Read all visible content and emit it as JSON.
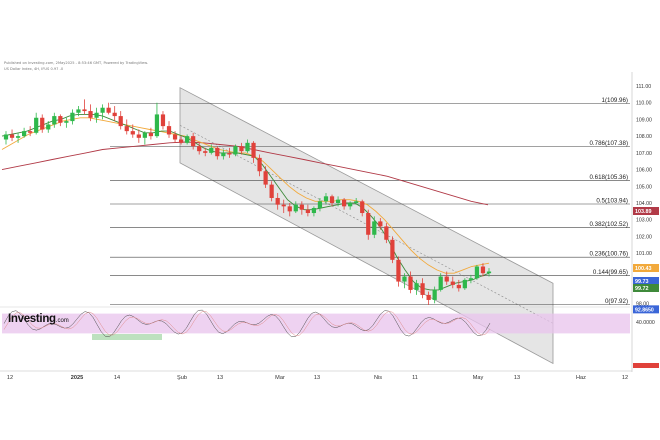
{
  "header": {
    "line1": "Published on Investing.com, 2May2025 - 8:53:46 GMT, Powered by TradingView.",
    "line2": "US Dollar Index, 4H, IFUS 0.97 -0"
  },
  "brand": {
    "name": "Investing",
    "suffix": ".com"
  },
  "colors": {
    "background": "#ffffff",
    "up": "#2eb84b",
    "down": "#e0413a",
    "ma_fast": "#3f8a3b",
    "ma_mid": "#f2a93b",
    "ma_slow": "#b13a47",
    "channel_fill": "#cfcfcf",
    "fib_line": "#444444",
    "osc_band": "#e8c3ec"
  },
  "chart_data": {
    "type": "candlestick",
    "title": "",
    "instrument": "US Dollar Index",
    "timeframe": "4H",
    "y_ticks": [
      111.0,
      110.0,
      109.0,
      108.0,
      107.0,
      106.0,
      105.0,
      104.0,
      103.0,
      102.0,
      101.0,
      100.0,
      99.0,
      98.0
    ],
    "ylim": [
      97.0,
      112.0
    ],
    "x_ticks": [
      "12",
      "2025",
      "14",
      "Şub",
      "13",
      "Mar",
      "13",
      "Nis",
      "11",
      "May",
      "13",
      "Haz",
      "12"
    ],
    "fibonacci": [
      {
        "ratio": "1",
        "value": 109.96,
        "label": "1(109.96)"
      },
      {
        "ratio": "0.786",
        "value": 107.38,
        "label": "0.786(107.38)"
      },
      {
        "ratio": "0.618",
        "value": 105.36,
        "label": "0.618(105.36)"
      },
      {
        "ratio": "0.5",
        "value": 103.94,
        "label": "0.5(103.94)"
      },
      {
        "ratio": "0.382",
        "value": 102.52,
        "label": "0.382(102.52)"
      },
      {
        "ratio": "0.236",
        "value": 100.76,
        "label": "0.236(100.76)"
      },
      {
        "ratio": "0.144",
        "value": 99.65,
        "label": "0.144(99.65)"
      },
      {
        "ratio": "0",
        "value": 97.92,
        "label": "0(97.92)"
      }
    ],
    "price_badges": [
      {
        "value": "103.89",
        "color": "#b13a47"
      },
      {
        "value": "100.43",
        "color": "#f2a93b"
      },
      {
        "value": "99.73",
        "color": "#3a66d8"
      },
      {
        "value": "99.72",
        "color": "#3f8a3b"
      }
    ],
    "oscillator": {
      "name": "Stochastic",
      "value_label": "92.8650",
      "ticks": [
        "40.0000"
      ],
      "band": [
        20,
        80
      ],
      "current": 92.87
    },
    "channel": {
      "upper": [
        {
          "x": "2025-02-03",
          "y": 110.9
        },
        {
          "x": "2025-05-30",
          "y": 99.2
        }
      ],
      "lower": [
        {
          "x": "2025-02-03",
          "y": 106.4
        },
        {
          "x": "2025-05-30",
          "y": 94.4
        }
      ]
    },
    "candles": [
      {
        "o": 107.8,
        "h": 108.3,
        "l": 107.5,
        "c": 108.1
      },
      {
        "o": 108.1,
        "h": 108.4,
        "l": 107.7,
        "c": 107.9
      },
      {
        "o": 107.9,
        "h": 108.2,
        "l": 107.6,
        "c": 108.0
      },
      {
        "o": 108.0,
        "h": 108.5,
        "l": 107.9,
        "c": 108.3
      },
      {
        "o": 108.3,
        "h": 108.6,
        "l": 108.0,
        "c": 108.2
      },
      {
        "o": 108.2,
        "h": 109.4,
        "l": 108.1,
        "c": 109.1
      },
      {
        "o": 109.1,
        "h": 109.3,
        "l": 108.2,
        "c": 108.4
      },
      {
        "o": 108.4,
        "h": 108.9,
        "l": 108.2,
        "c": 108.7
      },
      {
        "o": 108.7,
        "h": 109.4,
        "l": 108.5,
        "c": 109.2
      },
      {
        "o": 109.2,
        "h": 109.3,
        "l": 108.6,
        "c": 108.8
      },
      {
        "o": 108.8,
        "h": 109.1,
        "l": 108.5,
        "c": 108.9
      },
      {
        "o": 108.9,
        "h": 109.6,
        "l": 108.7,
        "c": 109.4
      },
      {
        "o": 109.4,
        "h": 109.8,
        "l": 109.2,
        "c": 109.6
      },
      {
        "o": 109.6,
        "h": 110.2,
        "l": 109.3,
        "c": 109.5
      },
      {
        "o": 109.5,
        "h": 109.9,
        "l": 108.9,
        "c": 109.1
      },
      {
        "o": 109.1,
        "h": 109.7,
        "l": 108.8,
        "c": 109.4
      },
      {
        "o": 109.4,
        "h": 109.9,
        "l": 109.0,
        "c": 109.7
      },
      {
        "o": 109.7,
        "h": 110.0,
        "l": 109.3,
        "c": 109.4
      },
      {
        "o": 109.4,
        "h": 109.8,
        "l": 108.9,
        "c": 109.2
      },
      {
        "o": 109.2,
        "h": 109.5,
        "l": 108.4,
        "c": 108.6
      },
      {
        "o": 108.6,
        "h": 109.0,
        "l": 108.1,
        "c": 108.3
      },
      {
        "o": 108.3,
        "h": 108.7,
        "l": 107.9,
        "c": 108.1
      },
      {
        "o": 108.1,
        "h": 108.4,
        "l": 107.6,
        "c": 107.9
      },
      {
        "o": 107.9,
        "h": 108.3,
        "l": 107.5,
        "c": 108.2
      },
      {
        "o": 108.2,
        "h": 108.5,
        "l": 107.8,
        "c": 108.0
      },
      {
        "o": 108.0,
        "h": 110.0,
        "l": 107.9,
        "c": 109.3
      },
      {
        "o": 109.3,
        "h": 109.5,
        "l": 108.4,
        "c": 108.6
      },
      {
        "o": 108.6,
        "h": 108.9,
        "l": 107.9,
        "c": 108.1
      },
      {
        "o": 108.1,
        "h": 108.3,
        "l": 107.6,
        "c": 107.8
      },
      {
        "o": 107.8,
        "h": 108.0,
        "l": 107.5,
        "c": 107.6
      },
      {
        "o": 107.6,
        "h": 108.1,
        "l": 107.5,
        "c": 108.0
      },
      {
        "o": 108.0,
        "h": 108.2,
        "l": 107.2,
        "c": 107.4
      },
      {
        "o": 107.4,
        "h": 107.6,
        "l": 106.9,
        "c": 107.1
      },
      {
        "o": 107.1,
        "h": 107.3,
        "l": 106.8,
        "c": 107.0
      },
      {
        "o": 107.0,
        "h": 107.5,
        "l": 106.9,
        "c": 107.3
      },
      {
        "o": 107.3,
        "h": 107.4,
        "l": 106.6,
        "c": 106.8
      },
      {
        "o": 106.8,
        "h": 107.2,
        "l": 106.6,
        "c": 107.0
      },
      {
        "o": 107.0,
        "h": 107.3,
        "l": 106.7,
        "c": 106.9
      },
      {
        "o": 106.9,
        "h": 107.5,
        "l": 106.8,
        "c": 107.4
      },
      {
        "o": 107.4,
        "h": 107.6,
        "l": 106.9,
        "c": 107.1
      },
      {
        "o": 107.1,
        "h": 107.8,
        "l": 107.0,
        "c": 107.6
      },
      {
        "o": 107.6,
        "h": 107.7,
        "l": 106.4,
        "c": 106.7
      },
      {
        "o": 106.7,
        "h": 106.9,
        "l": 105.6,
        "c": 105.9
      },
      {
        "o": 105.9,
        "h": 106.2,
        "l": 104.9,
        "c": 105.1
      },
      {
        "o": 105.1,
        "h": 105.3,
        "l": 104.1,
        "c": 104.3
      },
      {
        "o": 104.3,
        "h": 104.6,
        "l": 103.6,
        "c": 103.9
      },
      {
        "o": 103.9,
        "h": 104.2,
        "l": 103.4,
        "c": 103.8
      },
      {
        "o": 103.8,
        "h": 104.0,
        "l": 103.2,
        "c": 103.5
      },
      {
        "o": 103.5,
        "h": 104.1,
        "l": 103.4,
        "c": 103.9
      },
      {
        "o": 103.9,
        "h": 104.1,
        "l": 103.3,
        "c": 103.6
      },
      {
        "o": 103.6,
        "h": 103.9,
        "l": 103.2,
        "c": 103.4
      },
      {
        "o": 103.4,
        "h": 103.8,
        "l": 103.2,
        "c": 103.7
      },
      {
        "o": 103.7,
        "h": 104.3,
        "l": 103.5,
        "c": 104.1
      },
      {
        "o": 104.1,
        "h": 104.6,
        "l": 103.9,
        "c": 104.4
      },
      {
        "o": 104.4,
        "h": 104.5,
        "l": 103.8,
        "c": 104.0
      },
      {
        "o": 104.0,
        "h": 104.4,
        "l": 103.8,
        "c": 104.2
      },
      {
        "o": 104.2,
        "h": 104.3,
        "l": 103.6,
        "c": 103.8
      },
      {
        "o": 103.8,
        "h": 104.1,
        "l": 103.6,
        "c": 104.0
      },
      {
        "o": 104.0,
        "h": 104.3,
        "l": 103.9,
        "c": 104.1
      },
      {
        "o": 104.1,
        "h": 104.2,
        "l": 103.2,
        "c": 103.4
      },
      {
        "o": 103.4,
        "h": 103.6,
        "l": 101.8,
        "c": 102.1
      },
      {
        "o": 102.1,
        "h": 103.2,
        "l": 101.9,
        "c": 102.9
      },
      {
        "o": 102.9,
        "h": 103.1,
        "l": 102.4,
        "c": 102.6
      },
      {
        "o": 102.6,
        "h": 102.8,
        "l": 101.6,
        "c": 101.8
      },
      {
        "o": 101.8,
        "h": 102.0,
        "l": 100.4,
        "c": 100.6
      },
      {
        "o": 100.6,
        "h": 100.8,
        "l": 99.0,
        "c": 99.3
      },
      {
        "o": 99.3,
        "h": 99.8,
        "l": 98.9,
        "c": 99.6
      },
      {
        "o": 99.6,
        "h": 99.9,
        "l": 98.6,
        "c": 98.8
      },
      {
        "o": 98.8,
        "h": 99.4,
        "l": 98.5,
        "c": 99.2
      },
      {
        "o": 99.2,
        "h": 99.5,
        "l": 98.3,
        "c": 98.5
      },
      {
        "o": 98.5,
        "h": 98.7,
        "l": 97.9,
        "c": 98.2
      },
      {
        "o": 98.2,
        "h": 99.0,
        "l": 98.0,
        "c": 98.8
      },
      {
        "o": 98.8,
        "h": 99.8,
        "l": 98.7,
        "c": 99.6
      },
      {
        "o": 99.6,
        "h": 99.9,
        "l": 99.1,
        "c": 99.3
      },
      {
        "o": 99.3,
        "h": 99.6,
        "l": 98.9,
        "c": 99.1
      },
      {
        "o": 99.1,
        "h": 99.4,
        "l": 98.7,
        "c": 98.9
      },
      {
        "o": 98.9,
        "h": 99.5,
        "l": 98.8,
        "c": 99.4
      },
      {
        "o": 99.4,
        "h": 99.7,
        "l": 99.2,
        "c": 99.5
      },
      {
        "o": 99.5,
        "h": 100.3,
        "l": 99.4,
        "c": 100.2
      },
      {
        "o": 100.2,
        "h": 100.4,
        "l": 99.6,
        "c": 99.8
      },
      {
        "o": 99.8,
        "h": 100.1,
        "l": 99.6,
        "c": 99.9
      }
    ],
    "ma_fast": [
      108.0,
      108.1,
      108.2,
      108.3,
      108.5,
      108.7,
      108.9,
      109.0,
      109.2,
      109.3,
      109.3,
      109.3,
      109.2,
      109.0,
      108.8,
      108.6,
      108.4,
      108.2,
      108.2,
      108.3,
      108.3,
      108.1,
      107.9,
      107.6,
      107.3,
      107.1,
      107.0,
      107.0,
      107.0,
      106.9,
      106.8,
      106.3,
      105.6,
      104.9,
      104.2,
      103.8,
      103.6,
      103.6,
      103.7,
      103.8,
      103.9,
      104.0,
      104.0,
      103.7,
      103.2,
      102.6,
      101.8,
      100.8,
      100.0,
      99.3,
      98.9,
      98.8,
      98.8,
      99.0,
      99.2,
      99.3,
      99.4,
      99.6,
      99.8
    ],
    "ma_mid": [
      107.2,
      107.5,
      107.8,
      108.1,
      108.3,
      108.5,
      108.7,
      108.9,
      109.0,
      109.1,
      109.1,
      109.0,
      108.9,
      108.8,
      108.7,
      108.6,
      108.5,
      108.4,
      108.3,
      108.2,
      108.1,
      108.0,
      107.8,
      107.6,
      107.4,
      107.2,
      107.1,
      107.0,
      107.0,
      106.8,
      106.5,
      106.0,
      105.5,
      105.0,
      104.6,
      104.3,
      104.1,
      104.1,
      104.1,
      104.2,
      104.2,
      104.1,
      103.9,
      103.5,
      103.0,
      102.4,
      101.8,
      101.2,
      100.7,
      100.3,
      100.0,
      99.8,
      99.8,
      100.0,
      100.2,
      100.3,
      100.4
    ],
    "ma_slow": [
      106.0,
      106.2,
      106.4,
      106.6,
      106.8,
      107.0,
      107.2,
      107.3,
      107.4,
      107.5,
      107.6,
      107.65,
      107.6,
      107.5,
      107.4,
      107.2,
      107.0,
      106.8,
      106.6,
      106.4,
      106.2,
      106.0,
      105.8,
      105.6,
      105.3,
      105.0,
      104.7,
      104.4,
      104.1,
      103.89
    ]
  }
}
